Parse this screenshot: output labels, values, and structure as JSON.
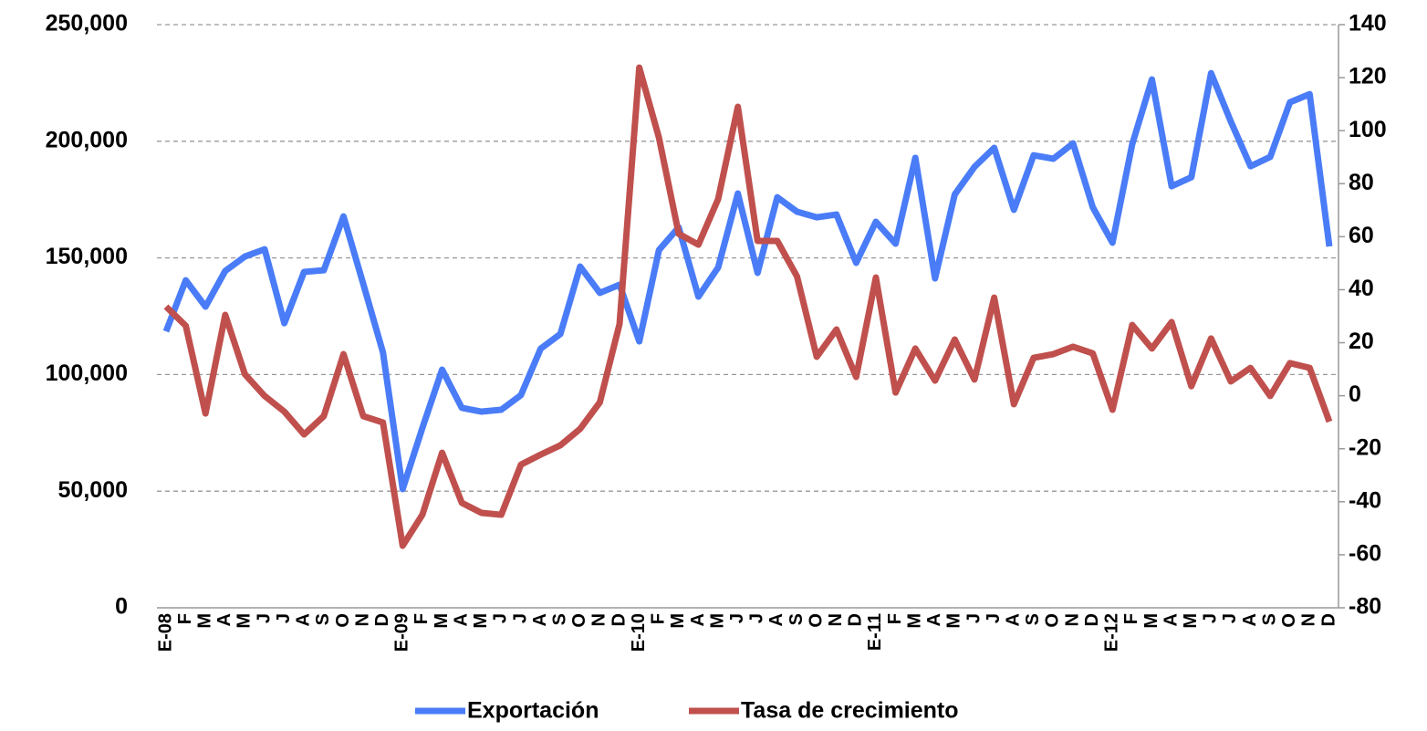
{
  "chart_data": {
    "type": "line",
    "categories": [
      "E-08",
      "F",
      "M",
      "A",
      "M",
      "J",
      "J",
      "A",
      "S",
      "O",
      "N",
      "D",
      "E-09",
      "F",
      "M",
      "A",
      "M",
      "J",
      "J",
      "A",
      "S",
      "O",
      "N",
      "D",
      "E-10",
      "F",
      "M",
      "A",
      "M",
      "J",
      "J",
      "A",
      "S",
      "O",
      "N",
      "D",
      "E-11",
      "F",
      "M",
      "A",
      "M",
      "J",
      "J",
      "A",
      "S",
      "O",
      "N",
      "D",
      "E-12",
      "F",
      "M",
      "A",
      "M",
      "J",
      "J",
      "A",
      "S",
      "O",
      "N",
      "D"
    ],
    "series": [
      {
        "name": "Exportación",
        "color": "#4a7cf7",
        "axis": "y",
        "values": [
          118500,
          140400,
          129100,
          144400,
          150600,
          153700,
          122000,
          144000,
          144700,
          167800,
          138900,
          109500,
          50900,
          77100,
          102100,
          85700,
          84100,
          84900,
          91200,
          111100,
          117400,
          146300,
          135000,
          138500,
          114200,
          153400,
          163100,
          133400,
          145900,
          177600,
          143600,
          176000,
          169800,
          167400,
          168600,
          147900,
          165500,
          156100,
          192900,
          141200,
          177200,
          189000,
          197200,
          170600,
          194000,
          192500,
          199100,
          171700,
          156500,
          198700,
          226500,
          180700,
          184600,
          229200,
          208500,
          189300,
          193300,
          216700,
          220200,
          154900
        ]
      },
      {
        "name": "Tasa de crecimiento",
        "color": "#c0504d",
        "axis": "y2",
        "values": [
          33.6,
          26.4,
          -6.7,
          30.5,
          8.1,
          -0.1,
          -6.0,
          -14.6,
          -7.7,
          15.7,
          -7.7,
          -10.1,
          -56.6,
          -44.9,
          -21.5,
          -40.4,
          -44.2,
          -44.9,
          -26.0,
          -22.2,
          -18.7,
          -12.5,
          -2.5,
          27.1,
          123.8,
          97.3,
          61.1,
          57.0,
          74.2,
          109.0,
          58.4,
          58.4,
          45.0,
          14.7,
          25.0,
          7.1,
          44.6,
          1.2,
          17.8,
          5.7,
          21.2,
          6.1,
          37.0,
          -3.2,
          14.3,
          15.7,
          18.5,
          16.0,
          -5.3,
          26.7,
          17.8,
          27.8,
          3.6,
          21.6,
          5.4,
          10.5,
          -0.1,
          12.3,
          10.5,
          -9.8
        ]
      }
    ],
    "ylim": [
      0,
      250000
    ],
    "yticks": [
      0,
      {
        "value": 50000,
        "label": "50,000"
      },
      {
        "value": 100000,
        "label": "100,000"
      },
      {
        "value": 150000,
        "label": "150,000"
      },
      {
        "value": 200000,
        "label": "200,000"
      },
      {
        "value": 250000,
        "label": "250,000"
      }
    ],
    "y2lim": [
      -80,
      140
    ],
    "y2ticks": [
      -80,
      -60,
      -40,
      -20,
      0,
      20,
      40,
      60,
      80,
      100,
      120,
      140
    ],
    "grid": true,
    "legend": "bottom"
  }
}
